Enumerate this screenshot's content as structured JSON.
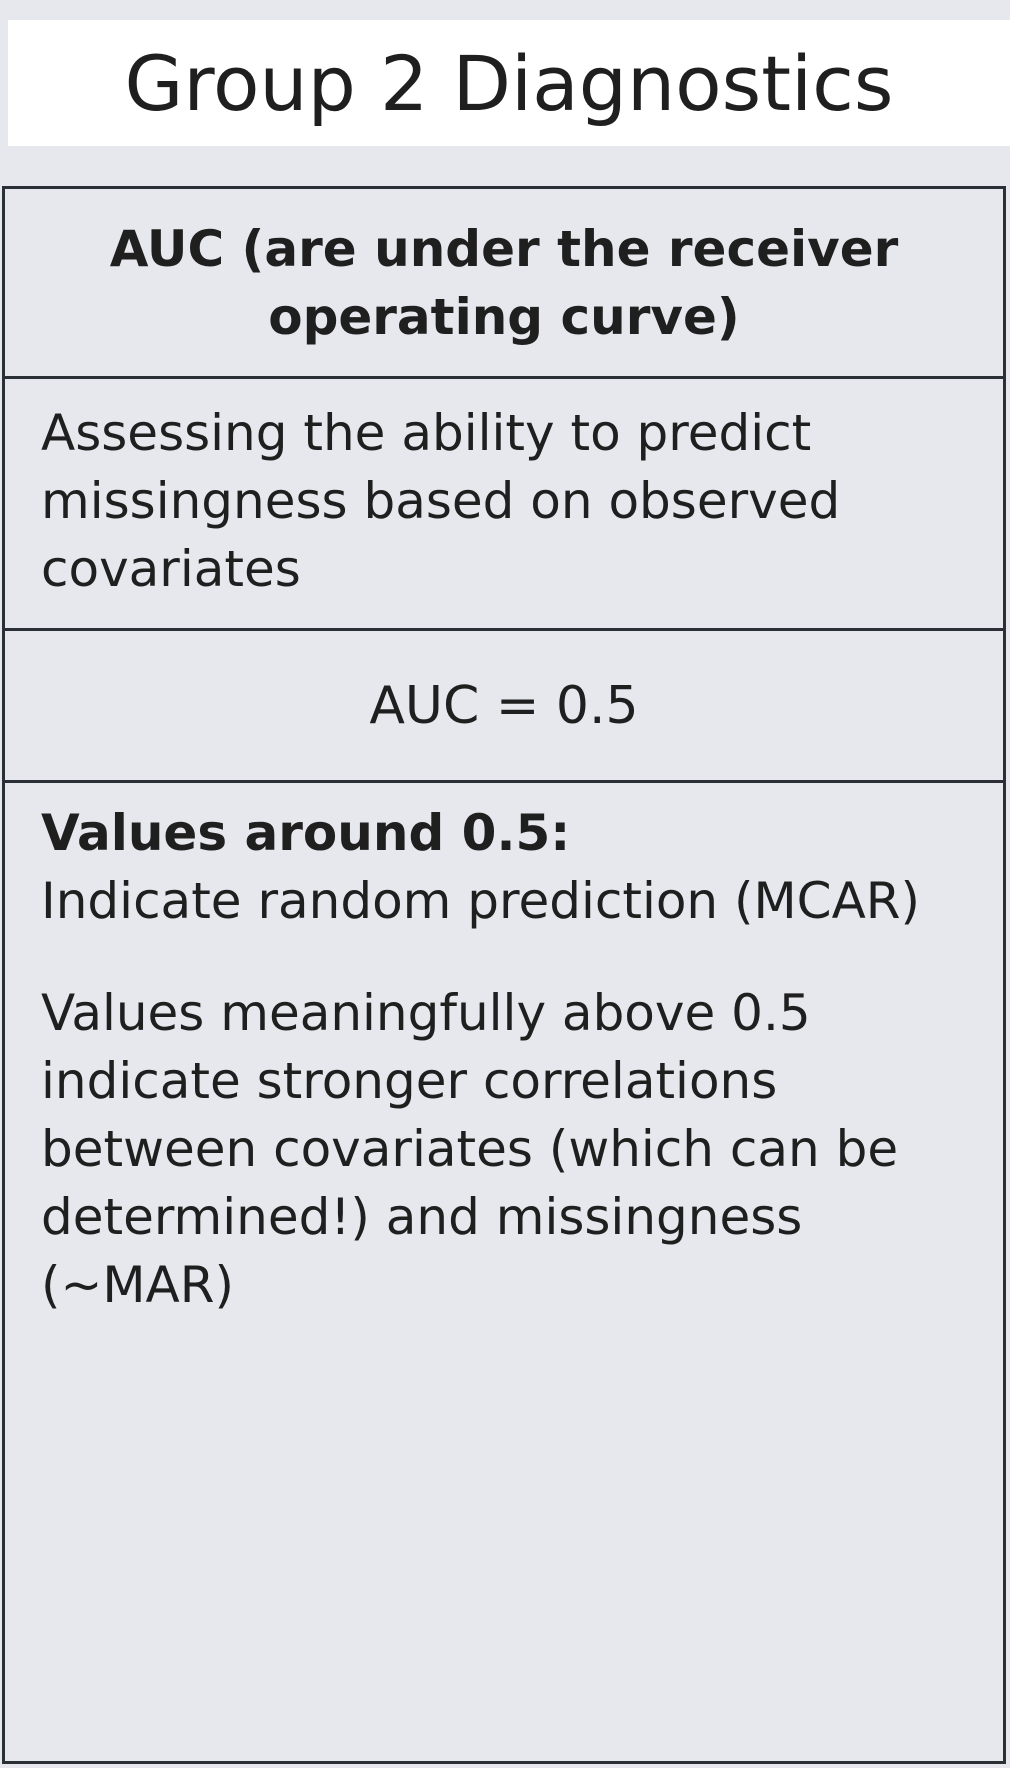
{
  "title": "Group 2 Diagnostics",
  "table": {
    "header": "AUC (are under the receiver operating curve)",
    "description": "Assessing the ability to predict missingness based on observed covariates",
    "value": "AUC = 0.5",
    "interpretation": {
      "label_1": "Values around 0.5:",
      "text_1": "Indicate random prediction (MCAR)",
      "text_2": "Values meaningfully above 0.5 indicate stronger correlations between covariates (which can be determined!) and missingness (~MAR)"
    }
  },
  "colors": {
    "background": "#e7e8ee",
    "title_box": "#ffffff",
    "border": "#2b2f36",
    "text": "#1f1f1f"
  }
}
